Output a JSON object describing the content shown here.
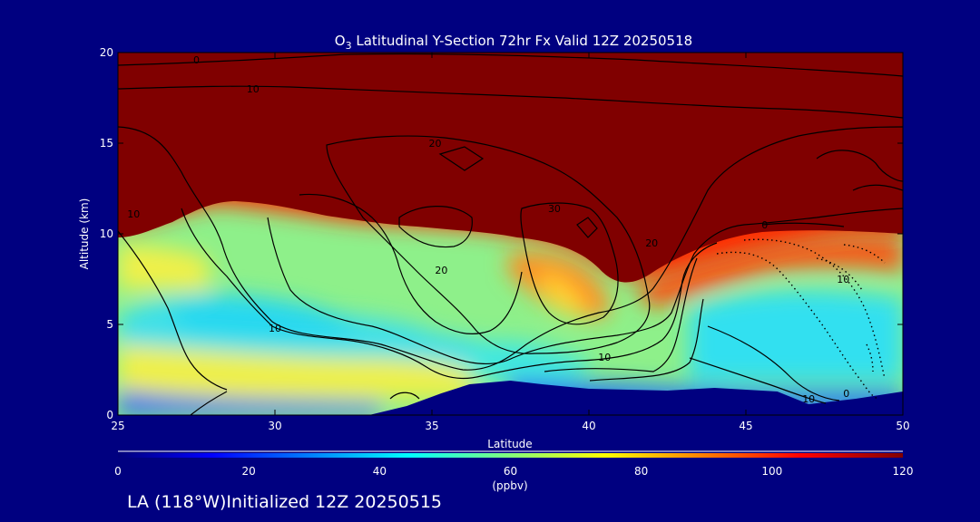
{
  "chart_data": {
    "type": "heatmap",
    "title_prefix": "O",
    "title_sub": "3",
    "title_rest": " Latitudinal Y-Section 72hr  Fx Valid 12Z 20250518",
    "xlabel": "Latitude",
    "ylabel": "Altitude (km)",
    "xlim": [
      25,
      50
    ],
    "ylim": [
      0,
      20
    ],
    "x_ticks": [
      25,
      30,
      35,
      40,
      45,
      50
    ],
    "y_ticks": [
      0,
      5,
      10,
      15,
      20
    ],
    "colorbar": {
      "label": "(ppbv)",
      "min": 0,
      "max": 120,
      "ticks": [
        0,
        20,
        40,
        60,
        80,
        100,
        120
      ]
    },
    "background_color": "#000080",
    "terrain_color": "#000080",
    "terrain": [
      {
        "lat": 33.0,
        "alt": 0.0
      },
      {
        "lat": 34.2,
        "alt": 0.5
      },
      {
        "lat": 35.3,
        "alt": 1.2
      },
      {
        "lat": 36.2,
        "alt": 1.7
      },
      {
        "lat": 37.5,
        "alt": 1.9
      },
      {
        "lat": 38.5,
        "alt": 1.7
      },
      {
        "lat": 40.0,
        "alt": 1.45
      },
      {
        "lat": 42.5,
        "alt": 1.35
      },
      {
        "lat": 44.0,
        "alt": 1.5
      },
      {
        "lat": 46.0,
        "alt": 1.3
      },
      {
        "lat": 47.0,
        "alt": 0.6
      },
      {
        "lat": 48.5,
        "alt": 0.9
      },
      {
        "lat": 50.0,
        "alt": 1.3
      }
    ],
    "contour_labels": [
      {
        "text": "0",
        "lat": 27.5,
        "alt": 19.6
      },
      {
        "text": "10",
        "lat": 29.3,
        "alt": 18.0
      },
      {
        "text": "20",
        "lat": 35.1,
        "alt": 15.0
      },
      {
        "text": "30",
        "lat": 38.9,
        "alt": 11.4
      },
      {
        "text": "10",
        "lat": 25.5,
        "alt": 11.1
      },
      {
        "text": "20",
        "lat": 35.3,
        "alt": 8.0
      },
      {
        "text": "10",
        "lat": 30.0,
        "alt": 4.8
      },
      {
        "text": "20",
        "lat": 42.0,
        "alt": 9.5
      },
      {
        "text": "10",
        "lat": 40.5,
        "alt": 3.2
      },
      {
        "text": "0",
        "lat": 45.6,
        "alt": 10.5
      },
      {
        "text": "10",
        "lat": 48.1,
        "alt": 7.5
      },
      {
        "text": "10",
        "lat": 47.0,
        "alt": 0.9
      },
      {
        "text": "0",
        "lat": 48.2,
        "alt": 1.2
      }
    ],
    "initialized": "LA (118°W)Initialized 12Z 20250515"
  }
}
